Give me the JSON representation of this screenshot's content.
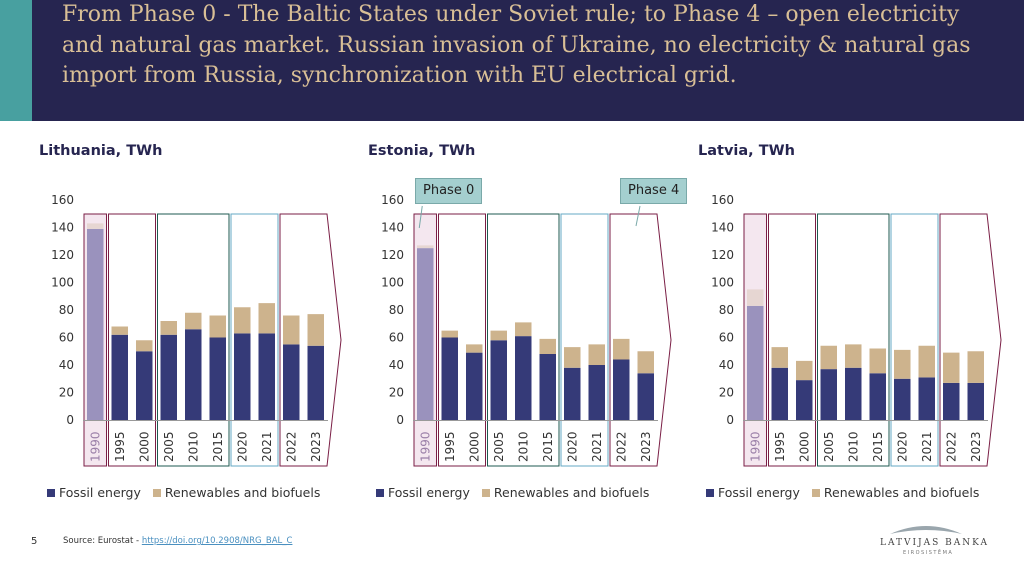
{
  "header": {
    "title": "From Phase 0 - The Baltic States under Soviet rule; to Phase 4 –  open electricity and natural gas market. Russian invasion of Ukraine, no electricity & natural gas import from Russia, synchronization with EU electrical grid."
  },
  "colors": {
    "header_bg": "#262550",
    "header_accent": "#48a0a0",
    "title_text": "#d9bf96",
    "fossil": "#353a78",
    "renewables": "#cdb38d",
    "fossil_phase0": "#9a92bd",
    "renewables_phase0": "#e6d6d2",
    "phase0_fill": "#f4e7ef",
    "phase_border_maroon": "#7a1e45",
    "phase_border_green": "#1e5a50",
    "phase_border_teal": "#66a9c4"
  },
  "callouts": {
    "phase0": "Phase 0",
    "phase4": "Phase 4"
  },
  "legend": {
    "fossil": "Fossil energy",
    "renewables": "Renewables and biofuels"
  },
  "footer": {
    "page_number": "5",
    "source_prefix": "Source: Eurostat - ",
    "source_link": "https://doi.org/10.2908/NRG_BAL_C",
    "logo_main": "LATVIJAS BANKA",
    "logo_sub": "EIROSISTĒMA"
  },
  "chart_data": [
    {
      "type": "bar",
      "stacked": true,
      "title": "Lithuania, TWh",
      "categories": [
        "1990",
        "1995",
        "2000",
        "2005",
        "2010",
        "2015",
        "2020",
        "2021",
        "2022",
        "2023"
      ],
      "series": [
        {
          "name": "Fossil energy",
          "values": [
            139,
            62,
            50,
            62,
            66,
            60,
            63,
            63,
            55,
            54
          ]
        },
        {
          "name": "Renewables and biofuels",
          "values": [
            4,
            6,
            8,
            10,
            12,
            16,
            19,
            22,
            21,
            23
          ]
        }
      ],
      "ylim": [
        0,
        160
      ],
      "yticks": [
        0,
        20,
        40,
        60,
        80,
        100,
        120,
        140,
        160
      ],
      "xlabel": "",
      "ylabel": ""
    },
    {
      "type": "bar",
      "stacked": true,
      "title": "Estonia, TWh",
      "categories": [
        "1990",
        "1995",
        "2000",
        "2005",
        "2010",
        "2015",
        "2020",
        "2021",
        "2022",
        "2023"
      ],
      "series": [
        {
          "name": "Fossil energy",
          "values": [
            125,
            60,
            49,
            58,
            61,
            48,
            38,
            40,
            44,
            34
          ]
        },
        {
          "name": "Renewables and biofuels",
          "values": [
            2,
            5,
            6,
            7,
            10,
            11,
            15,
            15,
            15,
            16
          ]
        }
      ],
      "ylim": [
        0,
        160
      ],
      "yticks": [
        0,
        20,
        40,
        60,
        80,
        100,
        120,
        140,
        160
      ],
      "xlabel": "",
      "ylabel": ""
    },
    {
      "type": "bar",
      "stacked": true,
      "title": "Latvia, TWh",
      "categories": [
        "1990",
        "1995",
        "2000",
        "2005",
        "2010",
        "2015",
        "2020",
        "2021",
        "2022",
        "2023"
      ],
      "series": [
        {
          "name": "Fossil energy",
          "values": [
            83,
            38,
            29,
            37,
            38,
            34,
            30,
            31,
            27,
            27
          ]
        },
        {
          "name": "Renewables and biofuels",
          "values": [
            12,
            15,
            14,
            17,
            17,
            18,
            21,
            23,
            22,
            23
          ]
        }
      ],
      "ylim": [
        0,
        160
      ],
      "yticks": [
        0,
        20,
        40,
        60,
        80,
        100,
        120,
        140,
        160
      ],
      "xlabel": "",
      "ylabel": ""
    }
  ]
}
